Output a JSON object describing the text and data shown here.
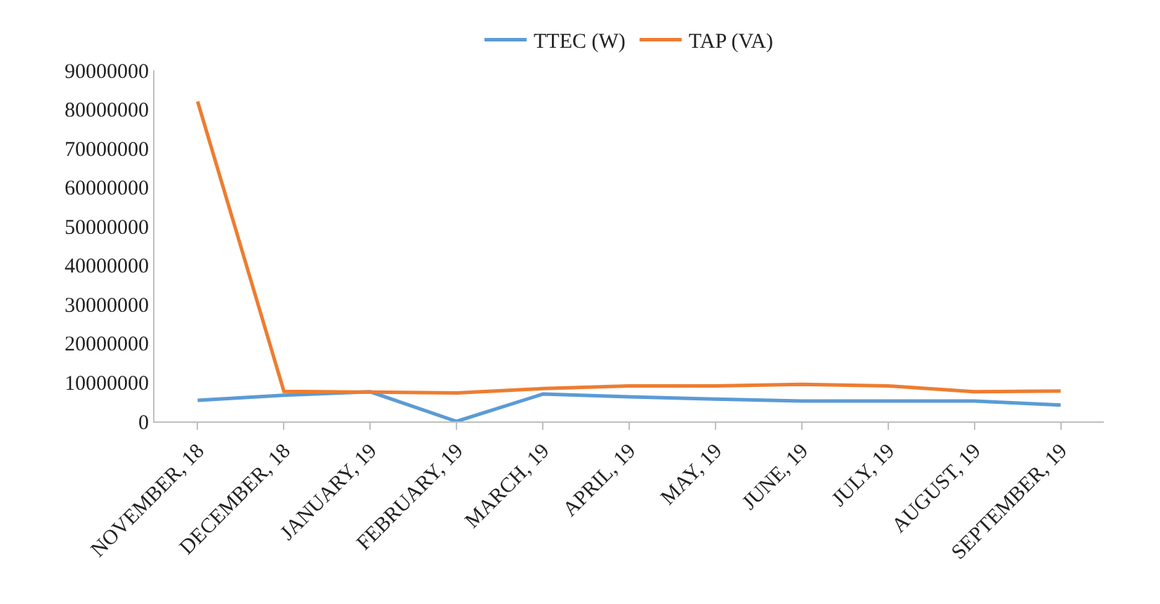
{
  "chart_data": {
    "type": "line",
    "categories": [
      "NOVEMBER, 18",
      "DECEMBER, 18",
      "JANUARY, 19",
      "FEBRUARY, 19",
      "MARCH, 19",
      "APRIL, 19",
      "MAY, 19",
      "JUNE, 19",
      "JULY, 19",
      "AUGUST, 19",
      "SEPTEMBER, 19"
    ],
    "series": [
      {
        "name": "TTEC (W)",
        "color": "#5b9bd5",
        "values": [
          5400000,
          6700000,
          7600000,
          0,
          7000000,
          6300000,
          5700000,
          5200000,
          5200000,
          5200000,
          4200000
        ]
      },
      {
        "name": "TAP (VA)",
        "color": "#ed7d31",
        "values": [
          82000000,
          7700000,
          7500000,
          7300000,
          8400000,
          9100000,
          9100000,
          9500000,
          9100000,
          7600000,
          7800000
        ]
      }
    ],
    "ylim": [
      0,
      90000000
    ],
    "yticks": [
      0,
      10000000,
      20000000,
      30000000,
      40000000,
      50000000,
      60000000,
      70000000,
      80000000,
      90000000
    ],
    "legend": "top",
    "marker": "none",
    "line_style": "solid"
  }
}
